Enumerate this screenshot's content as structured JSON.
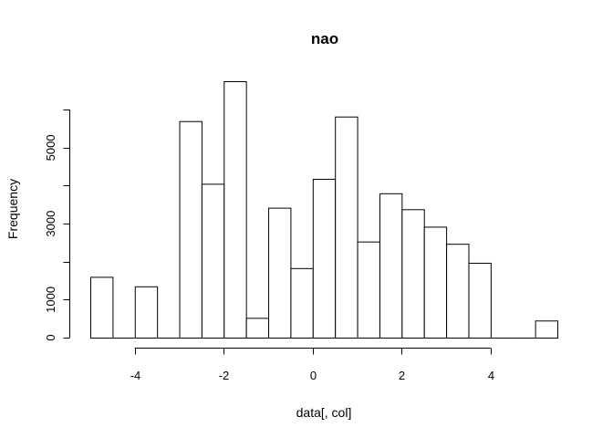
{
  "chart_data": {
    "type": "bar",
    "title": "nao",
    "xlabel": "data[, col]",
    "ylabel": "Frequency",
    "bin_width": 0.5,
    "bins": [
      [
        -5.0,
        -4.5
      ],
      [
        -4.5,
        -4.0
      ],
      [
        -4.0,
        -3.5
      ],
      [
        -3.5,
        -3.0
      ],
      [
        -3.0,
        -2.5
      ],
      [
        -2.5,
        -2.0
      ],
      [
        -2.0,
        -1.5
      ],
      [
        -1.5,
        -1.0
      ],
      [
        -1.0,
        -0.5
      ],
      [
        -0.5,
        0.0
      ],
      [
        0.0,
        0.5
      ],
      [
        0.5,
        1.0
      ],
      [
        1.0,
        1.5
      ],
      [
        1.5,
        2.0
      ],
      [
        2.0,
        2.5
      ],
      [
        2.5,
        3.0
      ],
      [
        3.0,
        3.5
      ],
      [
        3.5,
        4.0
      ],
      [
        4.0,
        4.5
      ],
      [
        4.5,
        5.0
      ],
      [
        5.0,
        5.5
      ]
    ],
    "values": [
      1600,
      0,
      1350,
      0,
      5700,
      4050,
      6750,
      520,
      3420,
      1830,
      4180,
      5820,
      2530,
      3800,
      3380,
      2920,
      2470,
      1970,
      0,
      0,
      450
    ],
    "xlim": [
      -5,
      5.5
    ],
    "ylim": [
      0,
      6750
    ],
    "x_ticks": [
      -4,
      -2,
      0,
      2,
      4
    ],
    "x_tick_labels": [
      "-4",
      "-2",
      "0",
      "2",
      "4"
    ],
    "y_ticks": [
      0,
      1000,
      3000,
      5000
    ],
    "y_minor_ticks": [
      2000,
      4000,
      6000
    ],
    "y_tick_labels": [
      "0",
      "1000",
      "3000",
      "5000"
    ],
    "grid": false,
    "bar_fill": "#ffffff",
    "bar_stroke": "#000000"
  }
}
